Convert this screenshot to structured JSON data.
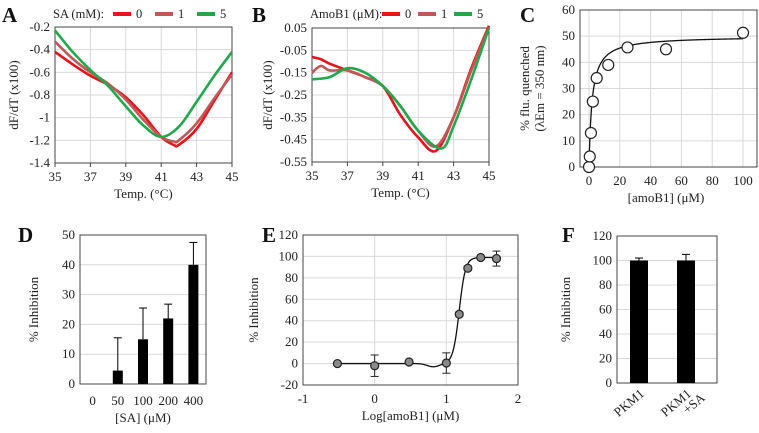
{
  "chart_data": [
    {
      "panel": "A",
      "type": "line",
      "legend_title": "SA (mM):",
      "legend_placement": "top",
      "xlabel": "Temp. (°C)",
      "ylabel": "dF/dT (x100)",
      "xlim": [
        35,
        45
      ],
      "ylim": [
        -1.4,
        -0.2
      ],
      "xticks": [
        "35",
        "37",
        "39",
        "41",
        "43",
        "45"
      ],
      "yticks": [
        "-0.2",
        "-0.4",
        "-0.6",
        "-0.8",
        "-1",
        "-1.2",
        "-1.4"
      ],
      "grid": true,
      "series": [
        {
          "name": "0",
          "color": "#e8141b",
          "x": [
            35,
            36,
            37,
            38,
            39,
            40,
            41,
            41.7,
            42,
            43,
            44,
            45
          ],
          "y": [
            -0.42,
            -0.53,
            -0.63,
            -0.71,
            -0.82,
            -0.98,
            -1.17,
            -1.24,
            -1.24,
            -1.1,
            -0.85,
            -0.6
          ]
        },
        {
          "name": "1",
          "color": "#c0585a",
          "x": [
            35,
            36,
            37,
            38,
            39,
            40,
            41,
            41.7,
            42,
            43,
            44,
            45
          ],
          "y": [
            -0.33,
            -0.48,
            -0.6,
            -0.7,
            -0.84,
            -1.02,
            -1.17,
            -1.21,
            -1.2,
            -1.05,
            -0.83,
            -0.62
          ]
        },
        {
          "name": "5",
          "color": "#1faa4a",
          "x": [
            35,
            36,
            37,
            38,
            39,
            40,
            41,
            42,
            43,
            44,
            45
          ],
          "y": [
            -0.23,
            -0.42,
            -0.58,
            -0.72,
            -0.9,
            -1.07,
            -1.17,
            -1.08,
            -0.86,
            -0.63,
            -0.42
          ]
        }
      ]
    },
    {
      "panel": "B",
      "type": "line",
      "legend_title": "AmoB1 (μM):",
      "legend_placement": "top",
      "xlabel": "Temp. (°C)",
      "ylabel": "dF/dT (x100)",
      "xlim": [
        35,
        45
      ],
      "ylim": [
        -0.55,
        0.05
      ],
      "xticks": [
        "35",
        "37",
        "39",
        "41",
        "43",
        "45"
      ],
      "yticks": [
        "0.05",
        "-0.05",
        "-0.15",
        "-0.25",
        "-0.35",
        "-0.45",
        "-0.55"
      ],
      "grid": true,
      "series": [
        {
          "name": "0",
          "color": "#e8141b",
          "x": [
            35,
            35.5,
            36,
            37,
            38,
            39,
            40,
            41,
            42,
            43,
            44,
            45
          ],
          "y": [
            -0.08,
            -0.09,
            -0.11,
            -0.14,
            -0.17,
            -0.21,
            -0.34,
            -0.44,
            -0.5,
            -0.35,
            -0.13,
            0.06
          ]
        },
        {
          "name": "1",
          "color": "#c0585a",
          "x": [
            35,
            35.5,
            36,
            37,
            38,
            39,
            40,
            41,
            42,
            43,
            44,
            45
          ],
          "y": [
            -0.15,
            -0.12,
            -0.14,
            -0.14,
            -0.17,
            -0.21,
            -0.3,
            -0.41,
            -0.48,
            -0.35,
            -0.14,
            0.05
          ]
        },
        {
          "name": "5",
          "color": "#1faa4a",
          "x": [
            35,
            36,
            37,
            38,
            39,
            40,
            41,
            42.3,
            43,
            44,
            45
          ],
          "y": [
            -0.18,
            -0.17,
            -0.13,
            -0.15,
            -0.21,
            -0.3,
            -0.41,
            -0.49,
            -0.39,
            -0.18,
            0.05
          ]
        }
      ]
    },
    {
      "panel": "C",
      "type": "scatter",
      "xlabel": "[amoB1] (μM)",
      "ylabel": "% flu. quenched",
      "ylabel2": "(λEm = 350 nm)",
      "xlim": [
        0,
        100
      ],
      "ylim": [
        0,
        60
      ],
      "xticks": [
        "0",
        "20",
        "40",
        "60",
        "80",
        "100"
      ],
      "yticks": [
        "60",
        "50",
        "40",
        "30",
        "20",
        "10",
        "0"
      ],
      "grid": true,
      "fit": "hyperbolic",
      "x": [
        0,
        0.5,
        1.25,
        2.5,
        5,
        12.5,
        25,
        50,
        100
      ],
      "y": [
        0,
        4,
        13,
        25,
        34,
        39,
        45.7,
        45,
        51.3
      ]
    },
    {
      "panel": "D",
      "type": "bar",
      "xlabel": "[SA] (μM)",
      "ylabel": "% Inhibition",
      "ylim": [
        0,
        50
      ],
      "categories": [
        "0",
        "50",
        "100",
        "200",
        "400"
      ],
      "values": [
        0,
        4.5,
        15,
        22,
        40
      ],
      "errors": [
        0,
        11,
        10.5,
        4.8,
        7.5
      ],
      "yticks": [
        "50",
        "40",
        "30",
        "20",
        "10",
        "0"
      ],
      "grid": true
    },
    {
      "panel": "E",
      "type": "scatter",
      "xlabel": "Log[amoB1] (μM)",
      "ylabel": "% Inhibition",
      "xlim": [
        -1,
        2
      ],
      "ylim": [
        -20,
        120
      ],
      "xticks": [
        "-1",
        "0",
        "1",
        "2"
      ],
      "yticks": [
        "120",
        "100",
        "80",
        "60",
        "40",
        "20",
        "0",
        "-20"
      ],
      "grid": true,
      "fit": "sigmoidal",
      "x": [
        -0.52,
        0,
        0.48,
        1.0,
        1.18,
        1.3,
        1.48,
        1.7
      ],
      "y": [
        0,
        -2,
        1.5,
        0.5,
        46,
        89,
        99,
        98
      ],
      "errors": [
        0,
        10,
        0,
        9.5,
        2,
        2,
        0,
        7
      ]
    },
    {
      "panel": "F",
      "type": "bar",
      "ylabel": "% Inhibition",
      "ylim": [
        0,
        120
      ],
      "categories": [
        "PKM1",
        "PKM1\n+SA"
      ],
      "values": [
        100,
        100
      ],
      "errors": [
        2,
        5
      ],
      "yticks": [
        "120",
        "100",
        "80",
        "60",
        "40",
        "20",
        "0"
      ],
      "grid": true
    }
  ]
}
